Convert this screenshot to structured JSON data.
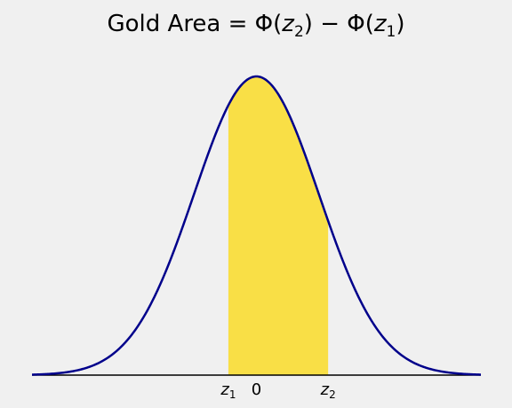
{
  "chart_data": {
    "type": "area",
    "title": {
      "prefix": "Gold Area = Φ(",
      "var1": "z",
      "sub1": "2",
      "middle": ") − Φ(",
      "var2": "z",
      "sub2": "1",
      "suffix": ")"
    },
    "distribution": "standard normal",
    "xlim": [
      -3.6,
      3.6
    ],
    "ylim": [
      0,
      0.4
    ],
    "shaded_region": {
      "from": -0.45,
      "to": 1.15
    },
    "x_ticks": [
      {
        "value": -0.45,
        "var": "z",
        "sub": "1"
      },
      {
        "value": 0,
        "label": "0"
      },
      {
        "value": 1.15,
        "var": "z",
        "sub": "2"
      }
    ],
    "colors": {
      "curve": "#00008b",
      "fill": "#f9df46",
      "axis": "#000000",
      "background": "#f0f0f0"
    },
    "grid": false,
    "legend": "none"
  }
}
